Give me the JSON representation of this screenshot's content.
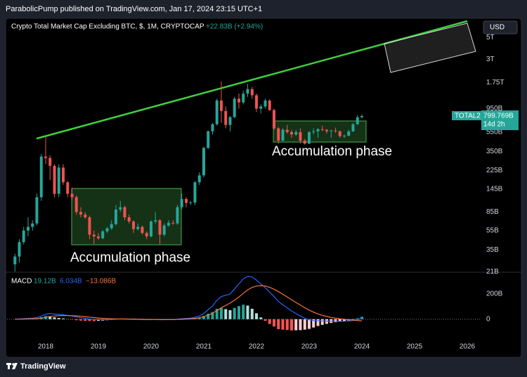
{
  "header": {
    "text": "ParabolicPump published on TradingView.com, Jan 17, 2024 23:15 UTC+1"
  },
  "footer": {
    "brand": "TradingView"
  },
  "chart_data": [
    {
      "type": "candlestick",
      "title": "Crypto Total Market Cap Excluding BTC, $, 1M, CRYPTOCAP",
      "change_label": "+22.83B (+2.94%)",
      "currency": "USD",
      "symbol": "TOTAL2",
      "last_label": "799.769B",
      "countdown": "14d 2h",
      "annotations": [
        "Accumulation phase",
        "Accumulation phase"
      ],
      "up_color": "#26a69a",
      "down_color": "#ef5350",
      "log_scale": true,
      "xlim": [
        2017.267,
        2026.267
      ],
      "xticks": [
        2018,
        2019,
        2020,
        2021,
        2022,
        2023,
        2024,
        2025,
        2026
      ],
      "ylim": [
        21.5,
        7600
      ],
      "yticks": [
        {
          "value": 5000,
          "label": "5T"
        },
        {
          "value": 3000,
          "label": "3T"
        },
        {
          "value": 1750,
          "label": "1.75T"
        },
        {
          "value": 950,
          "label": "950B"
        },
        {
          "value": 550,
          "label": "550B"
        },
        {
          "value": 350,
          "label": "350B"
        },
        {
          "value": 225,
          "label": "225B"
        },
        {
          "value": 145,
          "label": "145B"
        },
        {
          "value": 85,
          "label": "85B"
        },
        {
          "value": 55,
          "label": "55B"
        },
        {
          "value": 35,
          "label": "35B"
        },
        {
          "value": 21,
          "label": "21B"
        }
      ],
      "x": [
        2017.417,
        2017.5,
        2017.583,
        2017.667,
        2017.75,
        2017.833,
        2017.917,
        2018,
        2018.083,
        2018.167,
        2018.25,
        2018.333,
        2018.417,
        2018.5,
        2018.583,
        2018.667,
        2018.75,
        2018.833,
        2018.917,
        2019,
        2019.083,
        2019.167,
        2019.25,
        2019.333,
        2019.417,
        2019.5,
        2019.583,
        2019.667,
        2019.75,
        2019.833,
        2019.917,
        2020,
        2020.083,
        2020.167,
        2020.25,
        2020.333,
        2020.417,
        2020.5,
        2020.583,
        2020.667,
        2020.75,
        2020.833,
        2020.917,
        2021,
        2021.083,
        2021.167,
        2021.25,
        2021.333,
        2021.417,
        2021.5,
        2021.583,
        2021.667,
        2021.75,
        2021.833,
        2021.917,
        2022,
        2022.083,
        2022.167,
        2022.25,
        2022.333,
        2022.417,
        2022.5,
        2022.583,
        2022.667,
        2022.75,
        2022.833,
        2022.917,
        2023,
        2023.083,
        2023.167,
        2023.25,
        2023.333,
        2023.417,
        2023.5,
        2023.583,
        2023.667,
        2023.75,
        2023.833,
        2023.917,
        2024
      ],
      "open": [
        25,
        30,
        42,
        55,
        60,
        65,
        120,
        310,
        300,
        250,
        130,
        240,
        170,
        130,
        120,
        85,
        80,
        75,
        50,
        48,
        46,
        54,
        58,
        64,
        90,
        95,
        75,
        68,
        57,
        60,
        52,
        48,
        68,
        70,
        50,
        62,
        66,
        65,
        95,
        115,
        105,
        106,
        170,
        200,
        380,
        560,
        660,
        1150,
        900,
        650,
        780,
        1200,
        1100,
        1350,
        1500,
        1300,
        950,
        1000,
        1150,
        920,
        600,
        450,
        580,
        550,
        520,
        550,
        450,
        420,
        550,
        560,
        590,
        580,
        560,
        570,
        560,
        500,
        505,
        560,
        660,
        776.939
      ],
      "high": [
        32,
        45,
        60,
        75,
        70,
        130,
        330,
        500,
        320,
        260,
        260,
        260,
        175,
        150,
        125,
        95,
        85,
        78,
        55,
        52,
        56,
        60,
        70,
        100,
        110,
        98,
        80,
        70,
        65,
        62,
        54,
        70,
        85,
        72,
        65,
        70,
        70,
        100,
        130,
        120,
        110,
        175,
        215,
        390,
        570,
        680,
        1200,
        1800,
        1000,
        800,
        1250,
        1350,
        1450,
        1700,
        1580,
        1350,
        1050,
        1200,
        1180,
        950,
        620,
        600,
        650,
        580,
        580,
        600,
        470,
        560,
        600,
        600,
        640,
        590,
        580,
        610,
        570,
        520,
        580,
        680,
        820,
        830
      ],
      "low": [
        21,
        26,
        40,
        48,
        55,
        62,
        110,
        260,
        180,
        120,
        120,
        160,
        120,
        110,
        80,
        75,
        72,
        45,
        40,
        44,
        45,
        52,
        56,
        62,
        85,
        70,
        65,
        52,
        55,
        50,
        45,
        47,
        65,
        40,
        48,
        60,
        63,
        63,
        90,
        95,
        100,
        100,
        160,
        190,
        370,
        520,
        640,
        680,
        600,
        560,
        760,
        950,
        1050,
        1250,
        1200,
        880,
        850,
        950,
        900,
        580,
        420,
        440,
        530,
        480,
        500,
        420,
        410,
        415,
        520,
        480,
        560,
        530,
        480,
        540,
        480,
        480,
        500,
        550,
        650,
        760
      ],
      "close": [
        30,
        42,
        55,
        60,
        65,
        120,
        310,
        300,
        250,
        130,
        240,
        170,
        130,
        120,
        85,
        80,
        75,
        50,
        48,
        46,
        54,
        58,
        64,
        90,
        95,
        75,
        68,
        57,
        60,
        52,
        48,
        68,
        70,
        50,
        62,
        66,
        65,
        95,
        115,
        105,
        106,
        170,
        200,
        380,
        560,
        660,
        1150,
        900,
        650,
        780,
        1200,
        1100,
        1350,
        1500,
        1300,
        950,
        1000,
        1150,
        920,
        600,
        450,
        580,
        550,
        520,
        550,
        450,
        420,
        550,
        560,
        590,
        580,
        560,
        570,
        560,
        500,
        505,
        560,
        660,
        776.939,
        799.769
      ]
    },
    {
      "type": "macd",
      "title": "MACD",
      "baseline": 0,
      "ylim": [
        -135,
        345
      ],
      "yticks": [
        {
          "value": 200,
          "label": "200B"
        },
        0
      ],
      "histogram": {
        "colors": [
          "#26a69a",
          "#b2dfdb",
          "#ff5252",
          "#ffcdd2"
        ],
        "legend_label": "19.12B",
        "values": [
          0,
          2,
          3,
          4,
          5,
          7,
          16,
          25,
          24,
          15,
          10,
          6,
          1,
          -3,
          -8,
          -11,
          -13,
          -14,
          -15,
          -13,
          -11,
          -8,
          -5,
          -2,
          0,
          -1,
          -1,
          -2,
          -2,
          -2,
          -2,
          -1,
          0,
          -1,
          -1,
          0,
          1,
          2,
          5,
          5,
          5,
          9,
          14,
          25,
          43,
          57,
          82,
          90,
          80,
          72,
          90,
          104,
          115,
          108,
          83,
          47,
          14,
          -13,
          -38,
          -58,
          -79,
          -83,
          -86,
          -89,
          -88,
          -87,
          -83,
          -77,
          -66,
          -54,
          -45,
          -37,
          -30,
          -24,
          -20,
          -15,
          -10,
          -3,
          7,
          19.12
        ]
      },
      "series": [
        {
          "color": "#2962ff",
          "legend_label": "6.034B",
          "values": [
            0,
            2,
            4,
            6,
            8,
            12,
            25,
            40,
            45,
            40,
            38,
            35,
            30,
            25,
            18,
            12,
            7,
            2,
            -2,
            -4,
            -4,
            -3,
            -2,
            0,
            2,
            1,
            0,
            -1,
            -2,
            -3,
            -4,
            -3,
            -2,
            -4,
            -4,
            -3,
            -2,
            0,
            4,
            6,
            8,
            15,
            25,
            45,
            75,
            105,
            150,
            180,
            190,
            200,
            240,
            280,
            320,
            340,
            335,
            310,
            280,
            250,
            215,
            180,
            140,
            115,
            90,
            65,
            45,
            25,
            8,
            -5,
            -10,
            -12,
            -14,
            -15,
            -16,
            -16,
            -17,
            -16,
            -14,
            -10,
            -4,
            6.034
          ]
        },
        {
          "color": "#f7743b",
          "legend_label": "−13.086B",
          "values": [
            0,
            0,
            1,
            2,
            3,
            5,
            9,
            15,
            21,
            25,
            28,
            29,
            29,
            28,
            26,
            23,
            20,
            16,
            13,
            9,
            7,
            5,
            3,
            2,
            2,
            2,
            1,
            1,
            0,
            -1,
            -2,
            -2,
            -2,
            -3,
            -3,
            -3,
            -3,
            -2,
            -1,
            1,
            3,
            6,
            11,
            20,
            32,
            48,
            68,
            90,
            110,
            128,
            150,
            176,
            205,
            232,
            252,
            263,
            266,
            263,
            253,
            238,
            219,
            198,
            176,
            154,
            133,
            112,
            91,
            72,
            56,
            42,
            31,
            22,
            14,
            8,
            3,
            -1,
            -4,
            -7,
            -11,
            -13.086
          ]
        }
      ]
    }
  ]
}
